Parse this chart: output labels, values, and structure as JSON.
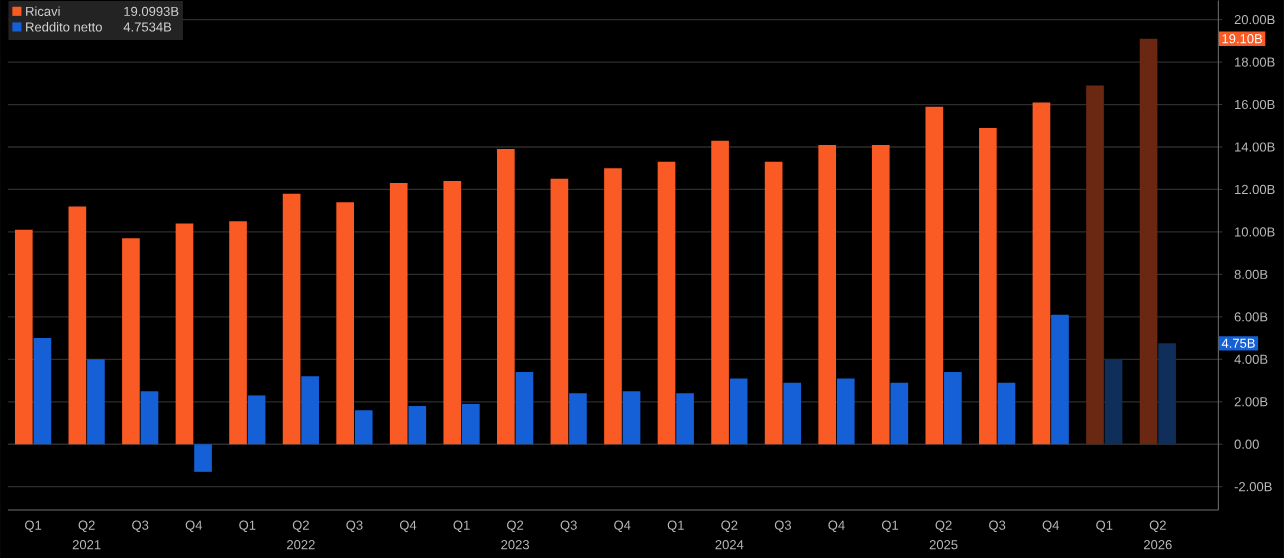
{
  "chart_data": {
    "type": "bar",
    "categories": [
      "Q1",
      "Q2",
      "Q3",
      "Q4",
      "Q1",
      "Q2",
      "Q3",
      "Q4",
      "Q1",
      "Q2",
      "Q3",
      "Q4",
      "Q1",
      "Q2",
      "Q3",
      "Q4",
      "Q1",
      "Q2",
      "Q3",
      "Q4",
      "Q1",
      "Q2"
    ],
    "series": [
      {
        "name": "Ricavi",
        "color": "#fa5a23",
        "colors": [
          "#fa5a23",
          "#fa5a23",
          "#fa5a23",
          "#fa5a23",
          "#fa5a23",
          "#fa5a23",
          "#fa5a23",
          "#fa5a23",
          "#fa5a23",
          "#fa5a23",
          "#fa5a23",
          "#fa5a23",
          "#fa5a23",
          "#fa5a23",
          "#fa5a23",
          "#fa5a23",
          "#fa5a23",
          "#fa5a23",
          "#fa5a23",
          "#fa5a23",
          "#6a2813",
          "#6a2813"
        ],
        "values": [
          10.1,
          11.2,
          9.7,
          10.4,
          10.5,
          11.8,
          11.4,
          12.3,
          12.4,
          13.9,
          12.5,
          13.0,
          13.3,
          14.3,
          13.3,
          14.1,
          14.1,
          15.9,
          14.9,
          16.1,
          16.9,
          19.0993
        ]
      },
      {
        "name": "Reddito netto",
        "color": "#1560d6",
        "colors": [
          "#1560d6",
          "#1560d6",
          "#1560d6",
          "#1560d6",
          "#1560d6",
          "#1560d6",
          "#1560d6",
          "#1560d6",
          "#1560d6",
          "#1560d6",
          "#1560d6",
          "#1560d6",
          "#1560d6",
          "#1560d6",
          "#1560d6",
          "#1560d6",
          "#1560d6",
          "#1560d6",
          "#1560d6",
          "#1560d6",
          "#0f2f5a",
          "#0f2f5a"
        ],
        "values": [
          5.0,
          4.0,
          2.5,
          -1.3,
          2.3,
          3.2,
          1.6,
          1.8,
          1.9,
          3.4,
          2.4,
          2.5,
          2.4,
          3.1,
          2.9,
          3.1,
          2.9,
          3.4,
          2.9,
          6.1,
          4.0,
          4.7534
        ]
      }
    ],
    "ylim": [
      -3.1,
      20.9
    ],
    "yticks": [
      {
        "value": -2,
        "label": "-2.00B"
      },
      {
        "value": 0,
        "label": "0.00"
      },
      {
        "value": 2,
        "label": "2.00B"
      },
      {
        "value": 4,
        "label": "4.00B"
      },
      {
        "value": 6,
        "label": "6.00B"
      },
      {
        "value": 8,
        "label": "8.00B"
      },
      {
        "value": 10,
        "label": "10.00B"
      },
      {
        "value": 12,
        "label": "12.00B"
      },
      {
        "value": 14,
        "label": "14.00B"
      },
      {
        "value": 16,
        "label": "16.00B"
      },
      {
        "value": 18,
        "label": "18.00B"
      },
      {
        "value": 20,
        "label": "20.00B"
      }
    ],
    "grid": "y",
    "legend": "top left",
    "annotations": [
      "2021",
      "2022",
      "2023",
      "2024",
      "2025",
      "2026",
      "19.0993B",
      "4.7534B",
      {
        "text": "19.10B",
        "y": 19.0993
      },
      {
        "text": "4.75B",
        "y": 4.7534
      }
    ]
  }
}
